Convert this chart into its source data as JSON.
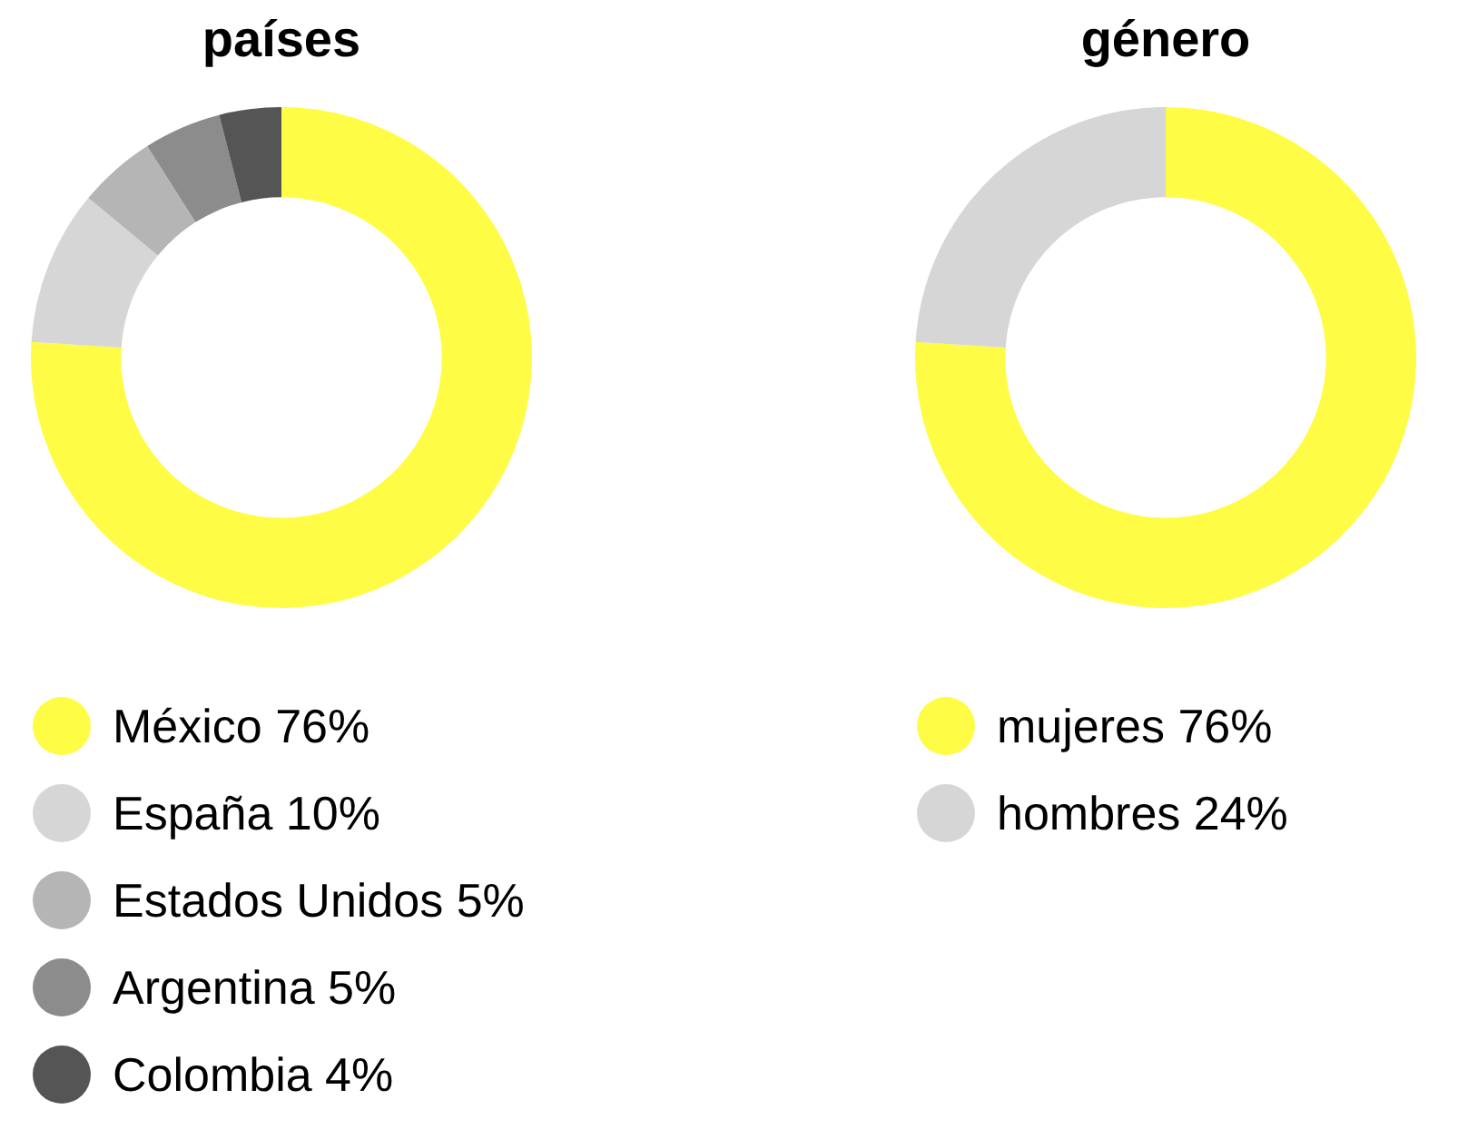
{
  "chart_data": [
    {
      "type": "donut",
      "title": "países",
      "categories": [
        "México",
        "España",
        "Estados Unidos",
        "Argentina",
        "Colombia"
      ],
      "values": [
        76,
        10,
        5,
        5,
        4
      ],
      "value_labels": [
        "76%",
        "10%",
        "5%",
        "5%",
        "4%"
      ],
      "colors": [
        "#fffc45",
        "#d6d6d6",
        "#b5b5b5",
        "#8c8c8c",
        "#555555"
      ],
      "legend": "bottom"
    },
    {
      "type": "donut",
      "title": "género",
      "categories": [
        "mujeres",
        "hombres"
      ],
      "values": [
        76,
        24
      ],
      "value_labels": [
        "76%",
        "24%"
      ],
      "colors": [
        "#fffc45",
        "#d6d6d6"
      ],
      "legend": "bottom"
    }
  ]
}
